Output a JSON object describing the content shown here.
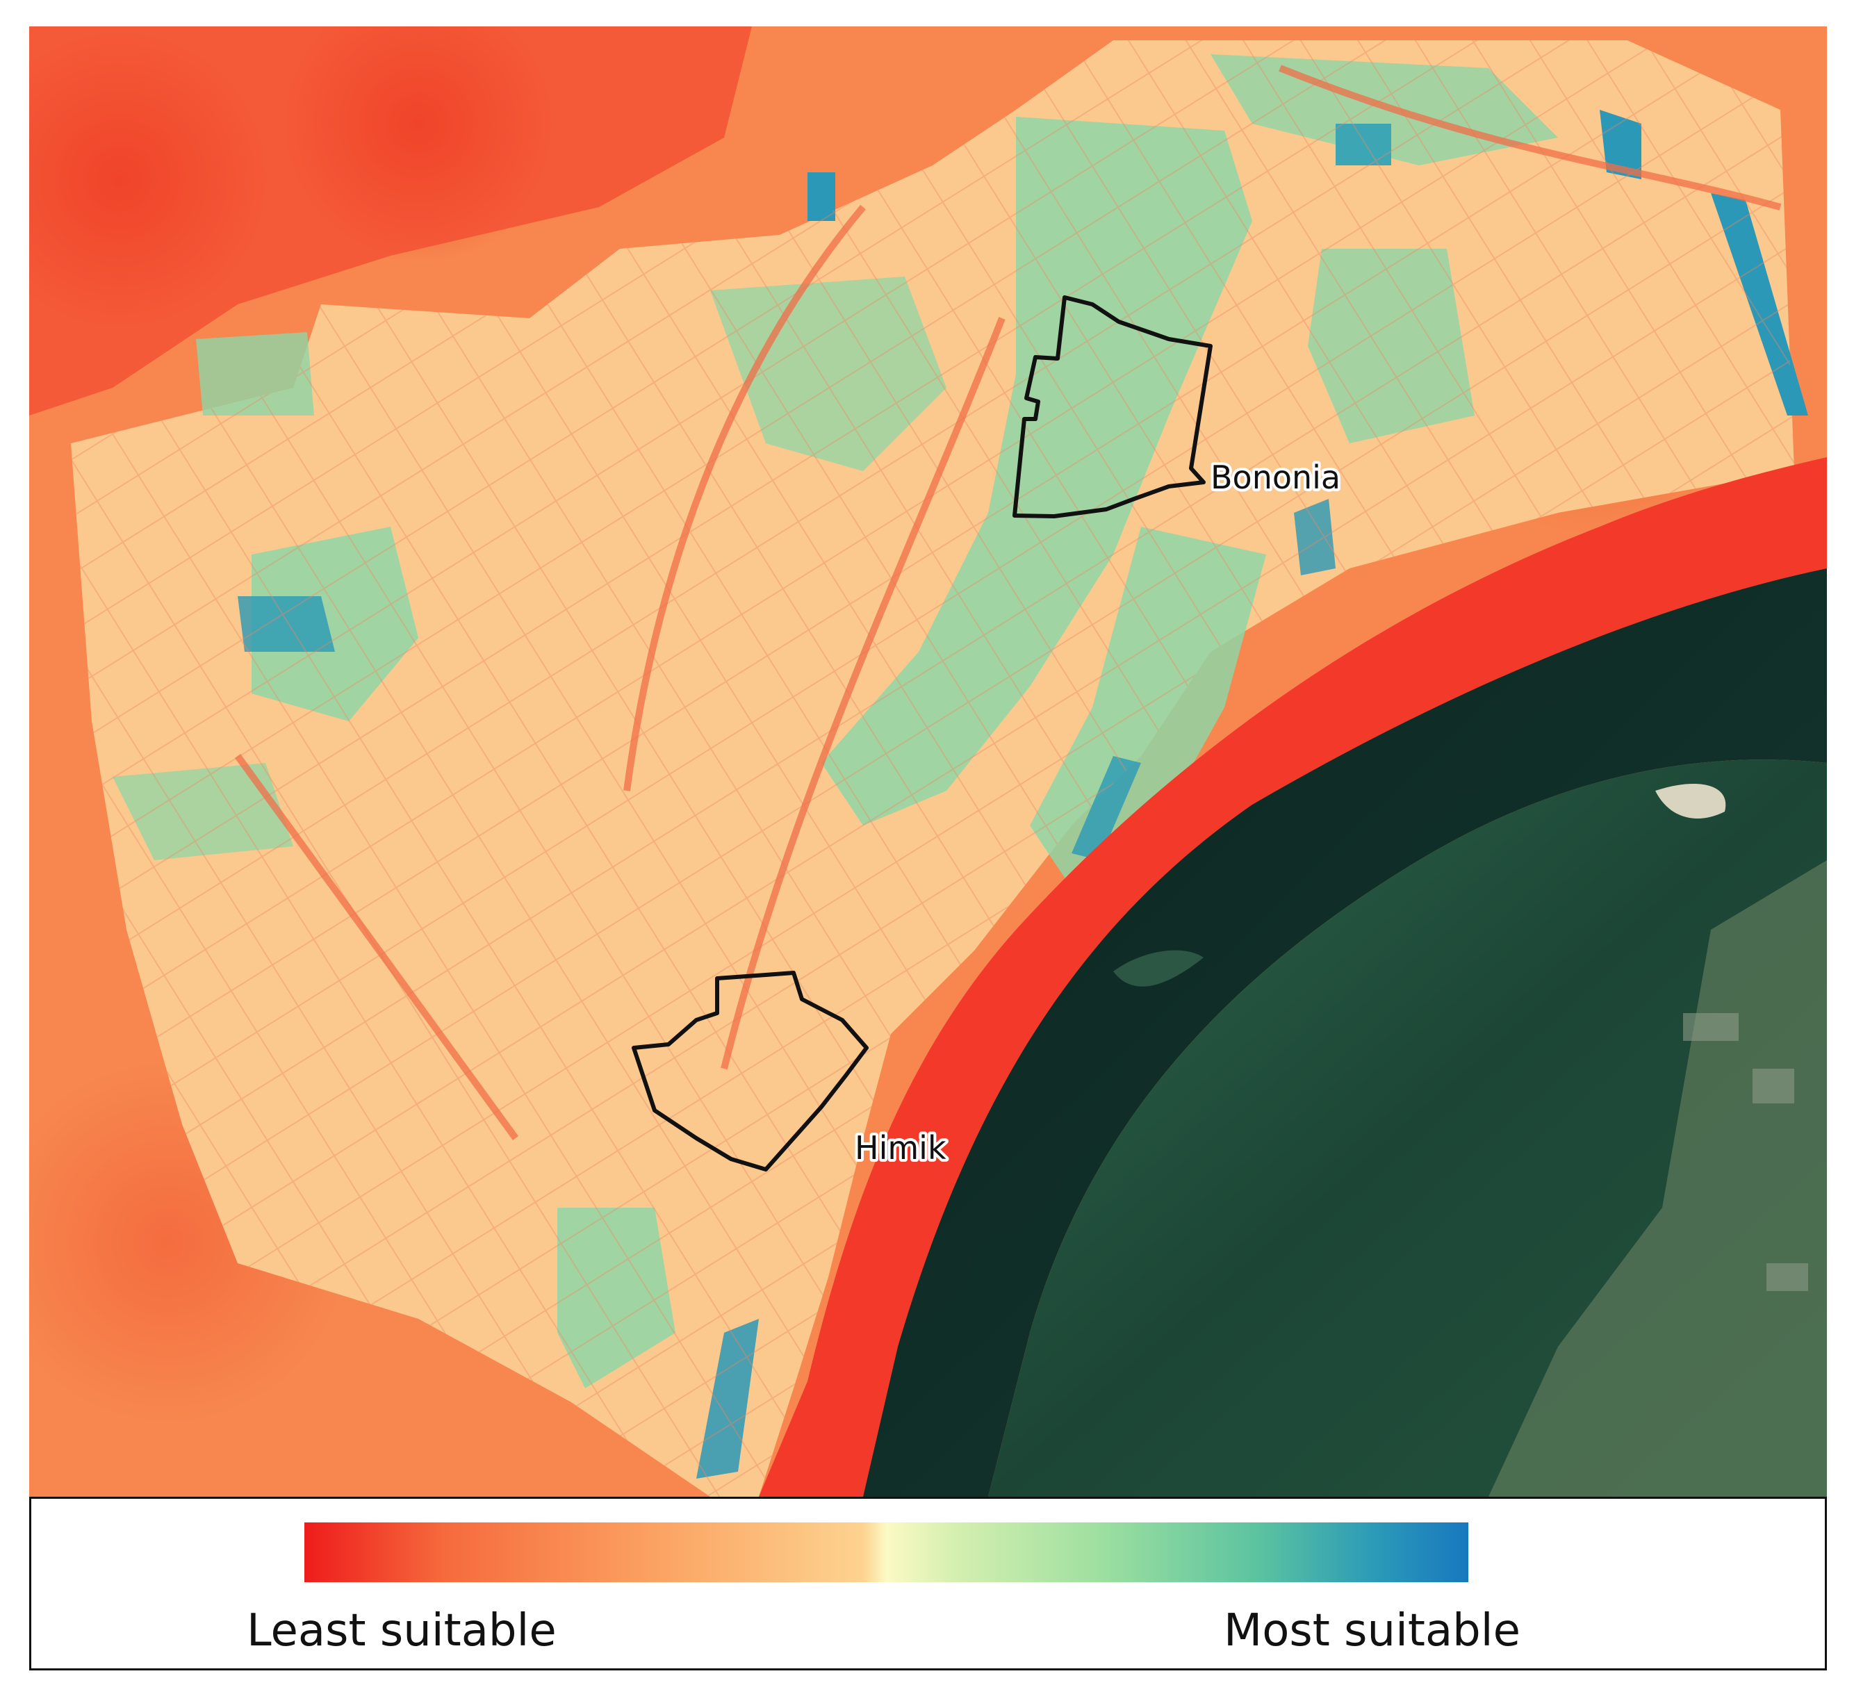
{
  "map": {
    "places": [
      {
        "name": "Bononia"
      },
      {
        "name": "Himik"
      }
    ],
    "colors": {
      "least": "#ee1c1c",
      "low": "#f8854a",
      "mid": "#fdd08f",
      "high": "#86d7a6",
      "most": "#1878bf",
      "river": "#0f2b26",
      "island": "#1f4a36",
      "boundary": "#111111"
    }
  },
  "legend": {
    "min_label": "Least suitable",
    "max_label": "Most suitable"
  }
}
